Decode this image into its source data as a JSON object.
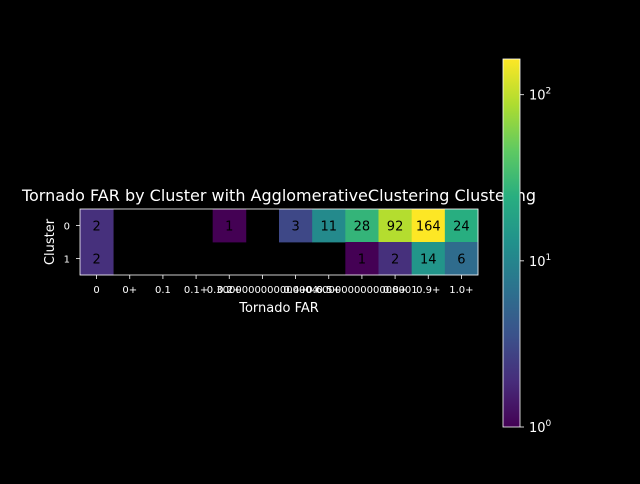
{
  "chart_data": {
    "type": "heatmap",
    "title": "Tornado FAR by Cluster with AgglomerativeClustering Clustering",
    "xlabel": "Tornado FAR",
    "ylabel": "Cluster",
    "x_categories": [
      "0",
      "0+",
      "0.1",
      "0.1+",
      "0.2+",
      "0.3000000000000004",
      "0.4+",
      "0.5+",
      "0.6000000000000001",
      "0.8+",
      "0.9+",
      "1.0+"
    ],
    "x_tick_labels": [
      "0",
      "0+",
      "0.1",
      "0.1+",
      "0.2+",
      "0.3000000000000004",
      "0.4+",
      "0.5+",
      "0.6000000000000001",
      "0.8+",
      "0.9+",
      "1.0+"
    ],
    "y_categories": [
      "0",
      "1"
    ],
    "values": [
      [
        2,
        null,
        null,
        null,
        1,
        null,
        3,
        11,
        28,
        92,
        164,
        24
      ],
      [
        2,
        null,
        null,
        null,
        null,
        null,
        null,
        null,
        1,
        2,
        14,
        6
      ]
    ],
    "colorbar": {
      "scale": "log",
      "min": 1,
      "max": 164,
      "ticks": [
        1,
        10,
        100
      ],
      "tick_labels": [
        "10",
        "10",
        "10"
      ],
      "tick_exponents": [
        "0",
        "1",
        "2"
      ],
      "colormap": "viridis"
    },
    "colors": {
      "background": "#000000",
      "text": "#ffffff",
      "annotation": "#000000"
    }
  }
}
